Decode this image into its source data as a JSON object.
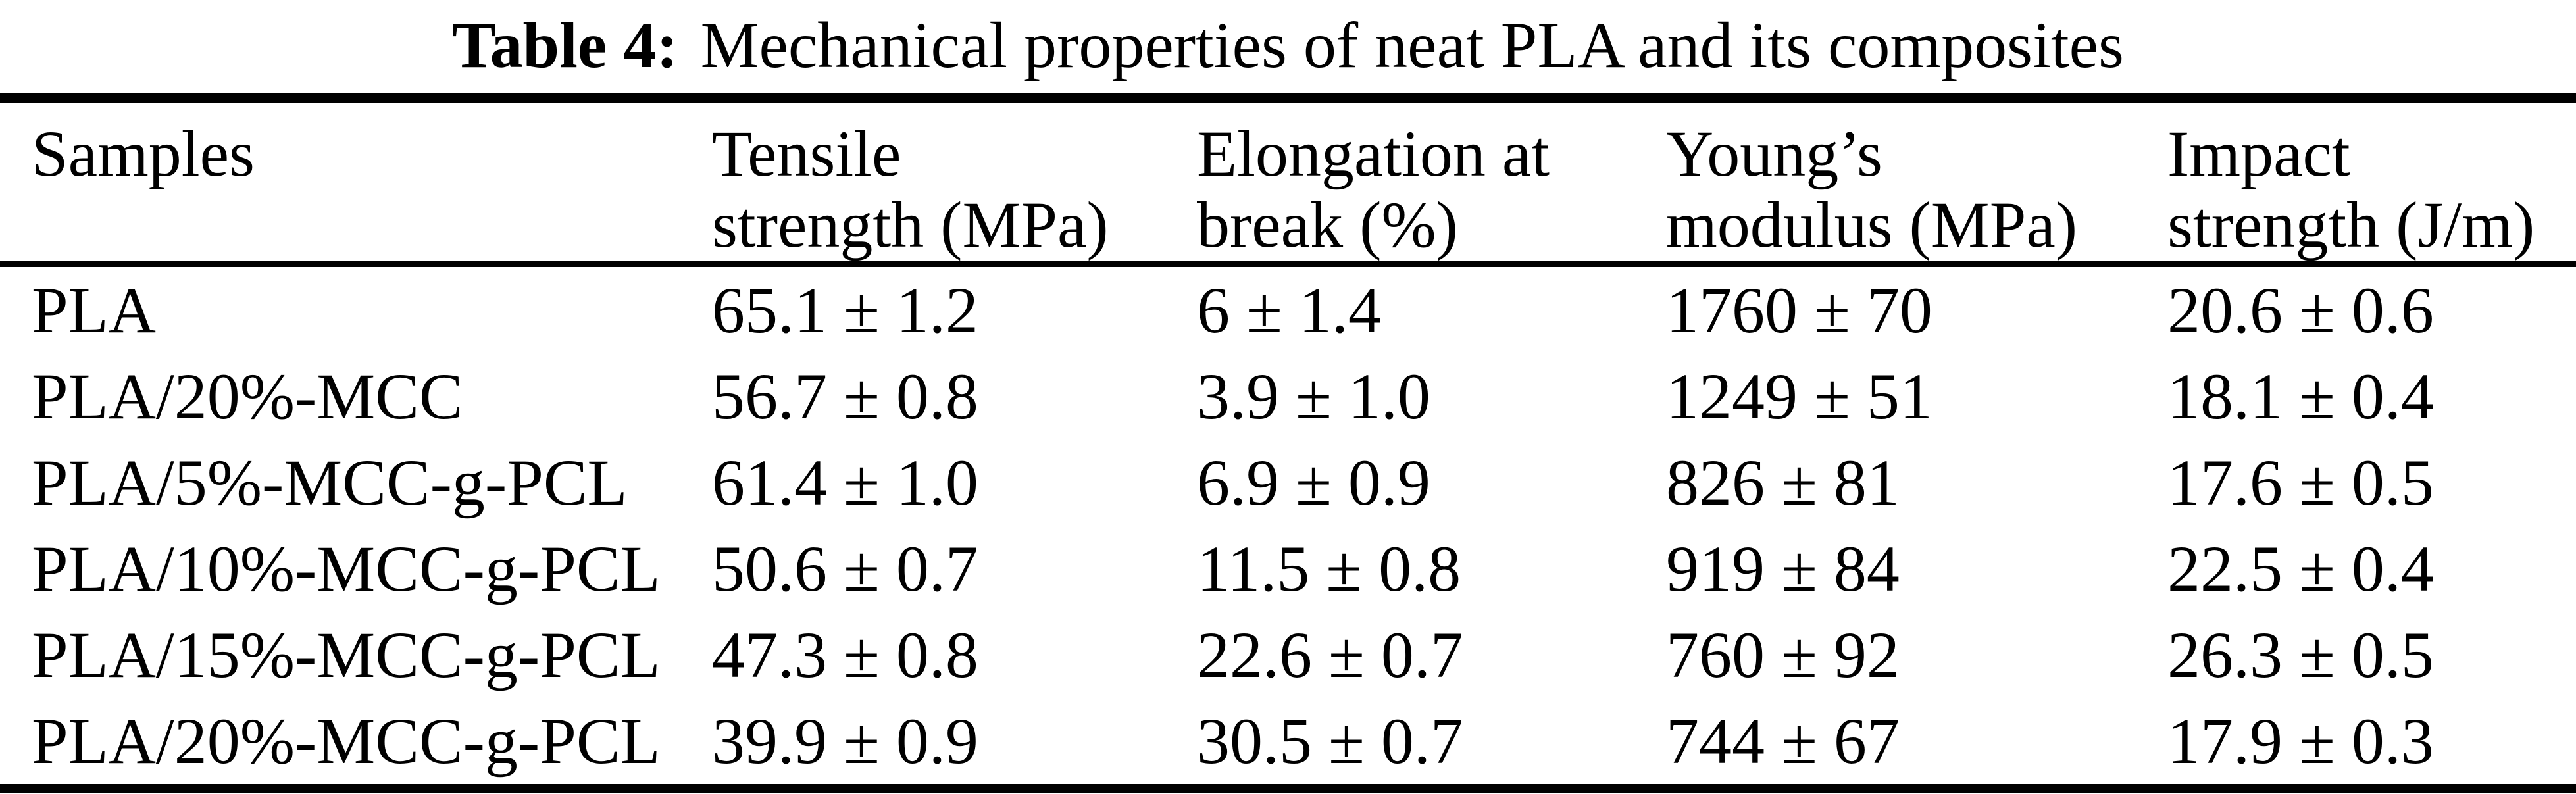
{
  "caption": {
    "label": "Table 4:",
    "text": "Mechanical properties of neat PLA and its composites"
  },
  "header": {
    "line1": [
      "Samples",
      "Tensile",
      "Elongation at",
      "Young’s",
      "Impact"
    ],
    "line2": [
      "",
      "strength (MPa)",
      "break (%)",
      "modulus (MPa)",
      "strength (J/m)"
    ]
  },
  "rows": [
    {
      "sample": "PLA",
      "tensile": "65.1 ± 1.2",
      "elongation": "6 ± 1.4",
      "youngs": "1760 ± 70",
      "impact": "20.6 ± 0.6"
    },
    {
      "sample": "PLA/20%-MCC",
      "tensile": "56.7 ± 0.8",
      "elongation": "3.9 ± 1.0",
      "youngs": "1249 ± 51",
      "impact": "18.1 ± 0.4"
    },
    {
      "sample": "PLA/5%-MCC-g-PCL",
      "tensile": "61.4 ± 1.0",
      "elongation": "6.9 ± 0.9",
      "youngs": "826 ± 81",
      "impact": "17.6 ± 0.5"
    },
    {
      "sample": "PLA/10%-MCC-g-PCL",
      "tensile": "50.6 ± 0.7",
      "elongation": "11.5 ± 0.8",
      "youngs": "919 ± 84",
      "impact": "22.5 ± 0.4"
    },
    {
      "sample": "PLA/15%-MCC-g-PCL",
      "tensile": "47.3 ± 0.8",
      "elongation": "22.6 ± 0.7",
      "youngs": "760 ± 92",
      "impact": "26.3 ± 0.5"
    },
    {
      "sample": "PLA/20%-MCC-g-PCL",
      "tensile": "39.9 ± 0.9",
      "elongation": "30.5 ± 0.7",
      "youngs": "744 ± 67",
      "impact": "17.9 ± 0.3"
    }
  ],
  "colors": {
    "text": "#000000",
    "background": "#ffffff",
    "rule": "#000000"
  }
}
